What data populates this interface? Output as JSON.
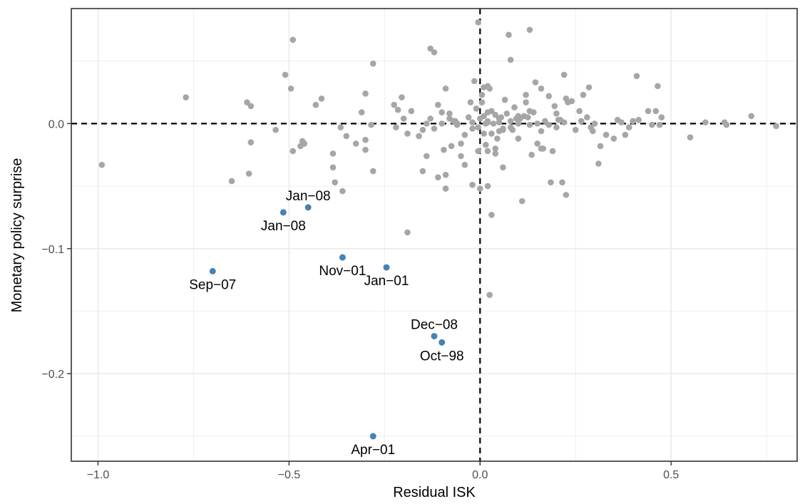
{
  "chart_data": {
    "type": "scatter",
    "title": "",
    "xlabel": "Residual ISK",
    "ylabel": "Monetary policy surprise",
    "xlim": [
      -1.07,
      0.83
    ],
    "ylim": [
      -0.27,
      0.092
    ],
    "grid": true,
    "reference_lines": {
      "x": 0.0,
      "y": 0.0,
      "style": "dashed"
    },
    "x_ticks": [
      {
        "value": -1.0,
        "label": "−1.0"
      },
      {
        "value": -0.5,
        "label": "−0.5"
      },
      {
        "value": 0.0,
        "label": "0.0"
      },
      {
        "value": 0.5,
        "label": "0.5"
      }
    ],
    "y_ticks": [
      {
        "value": -0.2,
        "label": "−0.2"
      },
      {
        "value": -0.1,
        "label": "−0.1"
      },
      {
        "value": 0.0,
        "label": "0.0"
      }
    ],
    "colors": {
      "background_points": "#a6a6a6",
      "highlight_points": "#4682b4",
      "grid": "#ebebeb",
      "panel_border": "#333333"
    },
    "highlighted": [
      {
        "x": -0.515,
        "y": -0.071,
        "label": "Jan−08",
        "label_pos": "below"
      },
      {
        "x": -0.45,
        "y": -0.067,
        "label": "Jan−08",
        "label_pos": "above"
      },
      {
        "x": -0.7,
        "y": -0.118,
        "label": "Sep−07",
        "label_pos": "below"
      },
      {
        "x": -0.36,
        "y": -0.107,
        "label": "Nov−01",
        "label_pos": "below"
      },
      {
        "x": -0.245,
        "y": -0.115,
        "label": "Jan−01",
        "label_pos": "below"
      },
      {
        "x": -0.12,
        "y": -0.17,
        "label": "Dec−08",
        "label_pos": "above"
      },
      {
        "x": -0.1,
        "y": -0.175,
        "label": "Oct−98",
        "label_pos": "below"
      },
      {
        "x": -0.28,
        "y": -0.25,
        "label": "Apr−01",
        "label_pos": "below"
      }
    ],
    "points": [
      [
        -0.99,
        -0.033
      ],
      [
        -0.77,
        0.021
      ],
      [
        -0.65,
        -0.046
      ],
      [
        -0.61,
        0.017
      ],
      [
        -0.6,
        0.014
      ],
      [
        -0.6,
        -0.015
      ],
      [
        -0.605,
        -0.04
      ],
      [
        -0.535,
        -0.005
      ],
      [
        -0.51,
        0.039
      ],
      [
        -0.49,
        0.067
      ],
      [
        -0.495,
        0.028
      ],
      [
        -0.49,
        -0.022
      ],
      [
        -0.47,
        -0.018
      ],
      [
        -0.465,
        -0.014
      ],
      [
        -0.46,
        -0.016
      ],
      [
        -0.43,
        0.015
      ],
      [
        -0.415,
        0.02
      ],
      [
        -0.385,
        -0.024
      ],
      [
        -0.385,
        -0.035
      ],
      [
        -0.38,
        -0.047
      ],
      [
        -0.36,
        -0.054
      ],
      [
        -0.365,
        -0.003
      ],
      [
        -0.35,
        -0.01
      ],
      [
        -0.325,
        -0.016
      ],
      [
        -0.31,
        0.009
      ],
      [
        -0.3,
        0.024
      ],
      [
        -0.3,
        -0.013
      ],
      [
        -0.3,
        -0.021
      ],
      [
        -0.28,
        0.048
      ],
      [
        -0.28,
        -0.038
      ],
      [
        -0.225,
        0.015
      ],
      [
        -0.22,
        -0.003
      ],
      [
        -0.215,
        0.011
      ],
      [
        -0.205,
        0.021
      ],
      [
        -0.2,
        0.004
      ],
      [
        -0.19,
        -0.008
      ],
      [
        -0.18,
        0.01
      ],
      [
        -0.19,
        -0.087
      ],
      [
        -0.15,
        -0.005
      ],
      [
        -0.14,
        0.0
      ],
      [
        -0.14,
        -0.026
      ],
      [
        -0.13,
        0.06
      ],
      [
        -0.12,
        0.057
      ],
      [
        -0.13,
        0.004
      ],
      [
        -0.12,
        -0.004
      ],
      [
        -0.11,
        0.015
      ],
      [
        -0.1,
        0.009
      ],
      [
        -0.1,
        0.0
      ],
      [
        -0.095,
        -0.021
      ],
      [
        -0.09,
        -0.052
      ],
      [
        -0.09,
        0.028
      ],
      [
        -0.08,
        0.008
      ],
      [
        -0.08,
        0.004
      ],
      [
        -0.075,
        -0.018
      ],
      [
        -0.065,
        0.002
      ],
      [
        -0.06,
        -0.001
      ],
      [
        -0.05,
        -0.016
      ],
      [
        -0.05,
        -0.026
      ],
      [
        -0.04,
        -0.009
      ],
      [
        -0.03,
        0.005
      ],
      [
        -0.02,
        0.001
      ],
      [
        -0.02,
        -0.049
      ],
      [
        -0.015,
        0.034
      ],
      [
        -0.01,
        0.012
      ],
      [
        0.0,
        0.004
      ],
      [
        -0.005,
        -0.003
      ],
      [
        -0.005,
        -0.022
      ],
      [
        0.005,
        0.017
      ],
      [
        0.005,
        0.023
      ],
      [
        0.01,
        0.029
      ],
      [
        0.01,
        0.006
      ],
      [
        0.01,
        -0.008
      ],
      [
        0.015,
        -0.017
      ],
      [
        0.02,
        0.002
      ],
      [
        0.02,
        -0.022
      ],
      [
        0.02,
        -0.05
      ],
      [
        0.025,
        0.028
      ],
      [
        0.03,
        0.01
      ],
      [
        0.03,
        -0.008
      ],
      [
        0.035,
        0.0
      ],
      [
        0.04,
        -0.02
      ],
      [
        0.04,
        -0.024
      ],
      [
        0.045,
        -0.012
      ],
      [
        0.05,
        0.001
      ],
      [
        0.055,
        0.005
      ],
      [
        0.06,
        -0.004
      ],
      [
        0.065,
        0.019
      ],
      [
        0.07,
        0.008
      ],
      [
        0.075,
        0.071
      ],
      [
        0.08,
        0.051
      ],
      [
        0.08,
        0.002
      ],
      [
        0.085,
        -0.005
      ],
      [
        0.09,
        0.013
      ],
      [
        0.095,
        0.004
      ],
      [
        0.1,
        -0.012
      ],
      [
        0.105,
        0.004
      ],
      [
        0.11,
        -0.062
      ],
      [
        0.115,
        0.006
      ],
      [
        0.12,
        0.017
      ],
      [
        0.125,
        0.005
      ],
      [
        0.13,
        -0.001
      ],
      [
        0.13,
        0.075
      ],
      [
        0.135,
        -0.025
      ],
      [
        0.14,
        0.009
      ],
      [
        0.145,
        0.033
      ],
      [
        0.15,
        -0.016
      ],
      [
        0.16,
        0.028
      ],
      [
        0.16,
        -0.02
      ],
      [
        0.165,
        -0.02
      ],
      [
        0.17,
        0.002
      ],
      [
        0.18,
        -0.001
      ],
      [
        0.18,
        0.022
      ],
      [
        0.185,
        -0.047
      ],
      [
        0.19,
        -0.022
      ],
      [
        0.195,
        0.014
      ],
      [
        0.2,
        0.008
      ],
      [
        0.205,
        0.003
      ],
      [
        0.21,
        0.003
      ],
      [
        0.215,
        -0.047
      ],
      [
        0.22,
        0.039
      ],
      [
        0.225,
        0.02
      ],
      [
        0.23,
        0.017
      ],
      [
        0.24,
        0.018
      ],
      [
        0.26,
        0.01
      ],
      [
        0.265,
        0.002
      ],
      [
        0.27,
        0.023
      ],
      [
        0.28,
        0.005
      ],
      [
        0.285,
        0.029
      ],
      [
        0.29,
        -0.003
      ],
      [
        0.295,
        -0.006
      ],
      [
        0.31,
        -0.032
      ],
      [
        0.315,
        -0.018
      ],
      [
        0.33,
        -0.009
      ],
      [
        0.35,
        -0.012
      ],
      [
        0.36,
        0.003
      ],
      [
        0.37,
        0.001
      ],
      [
        0.38,
        -0.009
      ],
      [
        0.39,
        -0.003
      ],
      [
        0.4,
        0.002
      ],
      [
        0.41,
        0.038
      ],
      [
        0.415,
        0.003
      ],
      [
        0.44,
        0.01
      ],
      [
        0.45,
        -0.001
      ],
      [
        0.46,
        0.01
      ],
      [
        0.465,
        0.03
      ],
      [
        0.47,
        -0.001
      ],
      [
        0.475,
        0.005
      ],
      [
        0.55,
        -0.011
      ],
      [
        0.59,
        0.001
      ],
      [
        0.64,
        0.001
      ],
      [
        0.645,
        -0.001
      ],
      [
        0.71,
        0.006
      ],
      [
        0.775,
        -0.002
      ],
      [
        0.2,
        -0.003
      ],
      [
        0.22,
        0.001
      ],
      [
        0.225,
        -0.057
      ],
      [
        0.03,
        -0.073
      ],
      [
        0.0,
        -0.052
      ],
      [
        0.025,
        -0.137
      ],
      [
        0.02,
        0.001
      ],
      [
        0.02,
        0.03
      ],
      [
        0.05,
        -0.006
      ],
      [
        -0.005,
        0.081
      ],
      [
        0.015,
        0.0
      ],
      [
        -0.04,
        -0.033
      ],
      [
        -0.09,
        -0.041
      ],
      [
        -0.11,
        -0.043
      ],
      [
        0.12,
        0.023
      ],
      [
        -0.025,
        0.017
      ],
      [
        0.06,
        -0.035
      ],
      [
        0.1,
        0.006
      ],
      [
        0.06,
        -0.005
      ],
      [
        -0.15,
        -0.038
      ],
      [
        -0.285,
        -0.001
      ],
      [
        -0.16,
        -0.01
      ],
      [
        -0.07,
        0.002
      ],
      [
        0.02,
        0.009
      ],
      [
        0.05,
        0.004
      ],
      [
        0.13,
        0.01
      ],
      [
        0.15,
        0.0
      ],
      [
        0.16,
        -0.006
      ],
      [
        0.25,
        -0.005
      ],
      [
        0.3,
        0.0
      ],
      [
        0.1,
        0.0
      ],
      [
        0.04,
        0.007
      ],
      [
        -0.06,
        0.0
      ],
      [
        0.08,
        -0.003
      ],
      [
        -0.02,
        -0.004
      ]
    ]
  }
}
